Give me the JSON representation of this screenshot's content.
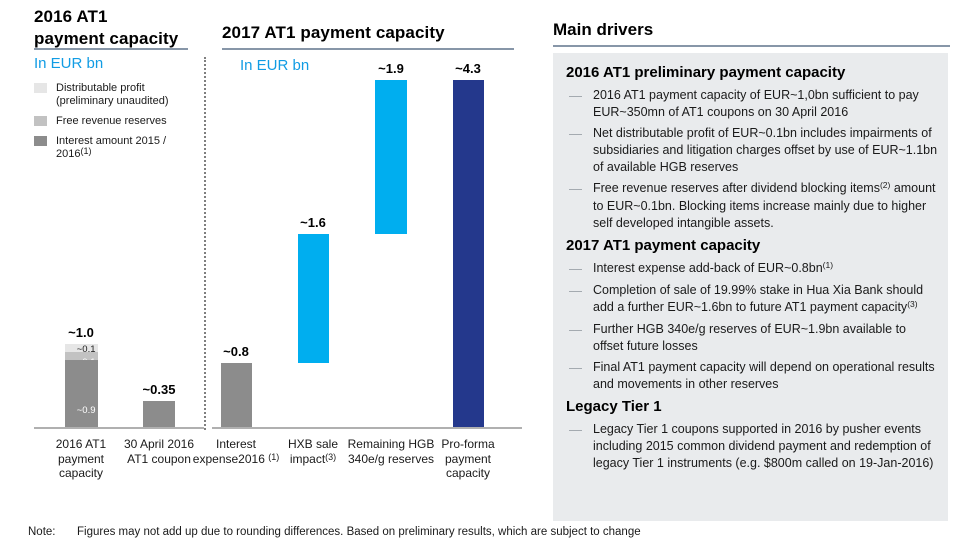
{
  "colors": {
    "cyan": "#00AEEF",
    "dark_blue": "#24388C",
    "gray_dark": "#8C8C8C",
    "gray_mid": "#C2C2C2",
    "gray_light": "#E6E6E6",
    "unit_text_blue": "#119CE4",
    "panel_bg": "#E9EBED",
    "rule_gray_blue": "#8796A8"
  },
  "chart_data": [
    {
      "type": "bar",
      "title": "2016 AT1 payment capacity",
      "title_lines": [
        "2016 AT1",
        "payment capacity"
      ],
      "unit": "In EUR bn",
      "ylabel": "EUR bn",
      "ylim": [
        0,
        1.2
      ],
      "grid": false,
      "legend_position": "top-left",
      "legend": [
        {
          "name": "distributable-profit",
          "label": "Distributable profit (preliminary unaudited)",
          "color": "#E6E6E6"
        },
        {
          "name": "free-revenue-reserves",
          "label": "Free revenue reserves",
          "color": "#C2C2C2"
        },
        {
          "name": "interest-amount",
          "label": "Interest amount 2015 / 2016",
          "sup": "(1)",
          "color": "#8C8C8C"
        }
      ],
      "categories": [
        "2016 AT1 payment capacity",
        "30 April 2016 AT1 coupon"
      ],
      "bars": [
        {
          "category": "2016 AT1 payment capacity",
          "total_label": "~1.0",
          "segments": [
            {
              "series": "Distributable profit (preliminary unaudited)",
              "value": 0.1,
              "label": "~0.1",
              "color": "#E6E6E6",
              "label_color": "#1a1a1a"
            },
            {
              "series": "Free revenue reserves",
              "value": 0.1,
              "label": "~0.1",
              "color": "#C2C2C2",
              "label_color": "#ffffff"
            },
            {
              "series": "Interest amount 2015 / 2016(1)",
              "value": 0.9,
              "label": "~0.9",
              "color": "#8C8C8C",
              "label_color": "#ffffff"
            }
          ]
        },
        {
          "category": "30 April 2016 AT1 coupon",
          "total_label": "~0.35",
          "segments": [
            {
              "series": "30 April 2016 AT1 coupon",
              "value": 0.35,
              "color": "#8C8C8C"
            }
          ]
        }
      ]
    },
    {
      "type": "waterfall_bar",
      "title": "2017 AT1 payment capacity",
      "unit": "In EUR bn",
      "ylabel": "EUR bn",
      "ylim": [
        0,
        4.6
      ],
      "grid": false,
      "bars": [
        {
          "category": "Interest expense2016 ",
          "category_sup": "(1)",
          "label": "~0.8",
          "value": 0.8,
          "start": 0,
          "end": 0.8,
          "color": "#8C8C8C"
        },
        {
          "category": "HXB sale impact",
          "category_sup": "(3)",
          "label": "~1.6",
          "value": 1.6,
          "start": 0.8,
          "end": 2.4,
          "color": "#00AEEF"
        },
        {
          "category": "Remaining HGB 340e/g reserves",
          "label": "~1.9",
          "value": 1.9,
          "start": 2.4,
          "end": 4.3,
          "color": "#00AEEF"
        },
        {
          "category": "Pro-forma payment capacity",
          "label": "~4.3",
          "value": 4.3,
          "start": 0,
          "end": 4.3,
          "color": "#24388C"
        }
      ]
    }
  ],
  "main_drivers": {
    "title": "Main drivers",
    "bullet_glyph": "—",
    "sections": [
      {
        "heading": "2016 AT1 preliminary payment capacity",
        "bullets": [
          [
            {
              "t": "2016 AT1 payment capacity of EUR~1,0bn sufficient to pay EUR~350mn of AT1 coupons on 30 April 2016"
            }
          ],
          [
            {
              "t": "Net distributable profit of EUR~0.1bn includes impairments of subsidiaries and litigation charges offset by use of EUR~1.1bn of available HGB reserves"
            }
          ],
          [
            {
              "t": "Free revenue reserves after dividend blocking items"
            },
            {
              "s": "(2)"
            },
            {
              "t": " amount to EUR~0.1bn. Blocking items increase mainly due to higher self developed intangible assets."
            }
          ]
        ]
      },
      {
        "heading": "2017 AT1 payment capacity",
        "bullets": [
          [
            {
              "t": "Interest expense add-back of EUR~0.8bn"
            },
            {
              "s": "(1)"
            }
          ],
          [
            {
              "t": "Completion of sale of 19.99% stake in Hua Xia Bank should add a further EUR~1.6bn to future AT1 payment capacity"
            },
            {
              "s": "(3)"
            }
          ],
          [
            {
              "t": "Further HGB 340e/g reserves of EUR~1.9bn available to offset future losses"
            }
          ],
          [
            {
              "t": "Final AT1 payment capacity will depend on operational results and movements in other reserves"
            }
          ]
        ]
      },
      {
        "heading": "Legacy Tier 1",
        "bullets": [
          [
            {
              "t": "Legacy Tier 1 coupons supported in 2016 by pusher events including 2015 common dividend payment and redemption of legacy Tier 1 instruments (e.g. $800m called on 19-Jan-2016)"
            }
          ]
        ]
      }
    ]
  },
  "note": {
    "label": "Note:",
    "text": "Figures may not add up due to rounding differences. Based on preliminary results, which are subject to change"
  }
}
